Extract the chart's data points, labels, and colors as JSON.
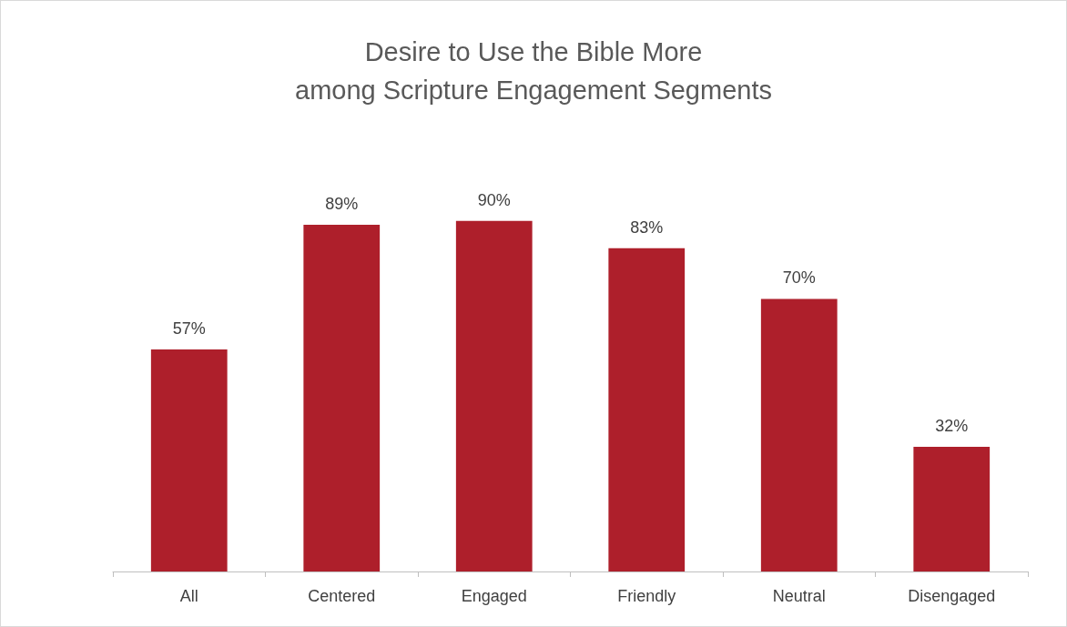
{
  "chart_data": {
    "type": "bar",
    "title": "Desire to Use the Bible More\namong Scripture Engagement Segments",
    "categories": [
      "All",
      "Centered",
      "Engaged",
      "Friendly",
      "Neutral",
      "Disengaged"
    ],
    "values": [
      57,
      89,
      90,
      83,
      70,
      32
    ],
    "value_labels": [
      "57%",
      "89%",
      "90%",
      "83%",
      "70%",
      "32%"
    ],
    "color": "#ae1f2b"
  }
}
